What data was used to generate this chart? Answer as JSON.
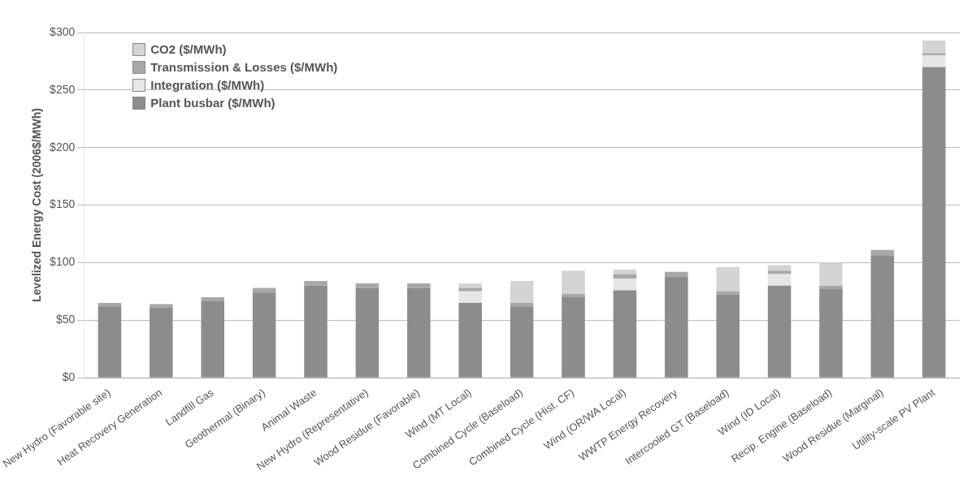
{
  "chart_data": {
    "type": "bar",
    "stacked": true,
    "ylabel": "Levelized Energy Cost (2006$/MWh)",
    "categories": [
      "New Hydro (Favorable site)",
      "Heat Recovery Generation",
      "Landfill Gas",
      "Geothermal (Binary)",
      "Animal Waste",
      "New Hydro (Representative)",
      "Wood Residue (Favorable)",
      "Wind (MT Local)",
      "Combined Cycle (Baseload)",
      "Combined Cycle (Hist. CF)",
      "Wind (OR/WA Local)",
      "WWTP Energy Recovery",
      "Intercooled GT (Baseload)",
      "Wind (ID Local)",
      "Recip. Engine (Baseload)",
      "Wood Residue (Marginal)",
      "Utility-scale PV Plant"
    ],
    "series": [
      {
        "name": "Plant busbar ($/MWh)",
        "color": "#8c8c8c",
        "values": [
          62,
          61,
          67,
          74,
          80,
          78,
          78,
          65,
          62,
          70,
          76,
          88,
          72,
          80,
          77,
          106,
          270
        ]
      },
      {
        "name": "Integration ($/MWh)",
        "color": "#e6e6e6",
        "values": [
          null,
          null,
          null,
          null,
          null,
          null,
          null,
          10,
          null,
          null,
          10,
          null,
          null,
          10,
          null,
          null,
          10
        ]
      },
      {
        "name": "Transmission & Losses ($/MWh)",
        "color": "#a8a8a8",
        "values": [
          3,
          3,
          3,
          4,
          4,
          4,
          4,
          3,
          3,
          3,
          4,
          4,
          3,
          3,
          3,
          5,
          2
        ]
      },
      {
        "name": "CO2 ($/MWh)",
        "color": "#d4d4d4",
        "values": [
          null,
          null,
          null,
          null,
          null,
          null,
          null,
          4,
          19,
          20,
          4,
          null,
          21,
          5,
          20,
          null,
          11
        ]
      }
    ],
    "ylim": [
      0,
      300
    ],
    "yticks": [
      {
        "value": 0,
        "label": "$0"
      },
      {
        "value": 50,
        "label": "$50"
      },
      {
        "value": 100,
        "label": "$100"
      },
      {
        "value": 150,
        "label": "$150"
      },
      {
        "value": 200,
        "label": "$200"
      },
      {
        "value": 250,
        "label": "$250"
      },
      {
        "value": 300,
        "label": "$300"
      }
    ],
    "grid": "y",
    "legend": "top left"
  }
}
